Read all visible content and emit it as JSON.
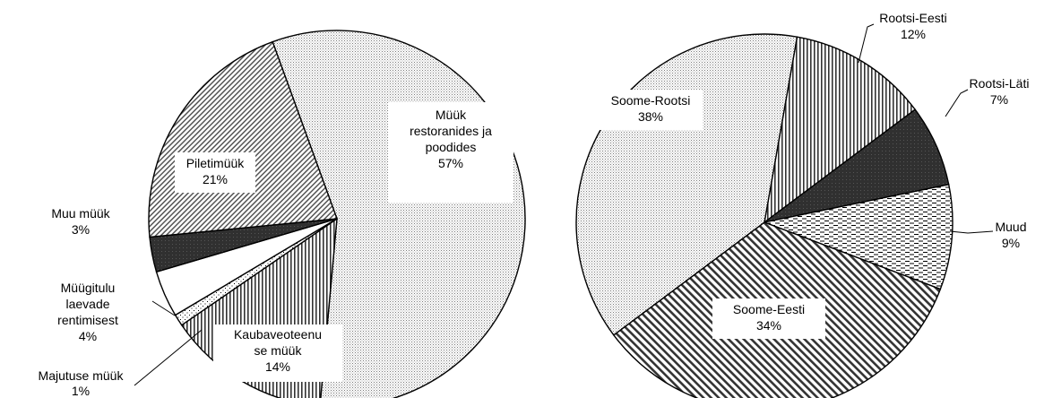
{
  "chart_data": [
    {
      "type": "pie",
      "title": "",
      "slices": [
        {
          "label": "Müük restoranides ja poodides",
          "display": [
            "Müük",
            "restoranides ja",
            "poodides"
          ],
          "value": 57,
          "pct": "57%",
          "pattern": "dots-fine"
        },
        {
          "label": "Kaubaveoteenuse müük",
          "display": [
            "Kaubaveoteenu",
            "se müük"
          ],
          "value": 14,
          "pct": "14%",
          "pattern": "vert-lines"
        },
        {
          "label": "Majutuse müük",
          "display": [
            "Majutuse  müük"
          ],
          "value": 1,
          "pct": "1%",
          "pattern": "dots-sparse"
        },
        {
          "label": "Müügitulu laevade rentimisest",
          "display": [
            "Müügitulu",
            "laevade",
            "rentimisest"
          ],
          "value": 4,
          "pct": "4%",
          "pattern": "white"
        },
        {
          "label": "Muu müük",
          "display": [
            "Muu müük"
          ],
          "value": 3,
          "pct": "3%",
          "pattern": "dark"
        },
        {
          "label": "Piletimüük",
          "display": [
            "Piletimüük"
          ],
          "value": 21,
          "pct": "21%",
          "pattern": "diag-fine"
        }
      ]
    },
    {
      "type": "pie",
      "title": "",
      "slices": [
        {
          "label": "Rootsi-Eesti",
          "display": [
            "Rootsi-Eesti"
          ],
          "value": 12,
          "pct": "12%",
          "pattern": "vert-lines"
        },
        {
          "label": "Rootsi-Läti",
          "display": [
            "Rootsi-Läti"
          ],
          "value": 7,
          "pct": "7%",
          "pattern": "dark"
        },
        {
          "label": "Muud",
          "display": [
            "Muud"
          ],
          "value": 9,
          "pct": "9%",
          "pattern": "dashes"
        },
        {
          "label": "Soome-Eesti",
          "display": [
            "Soome-Eesti"
          ],
          "value": 34,
          "pct": "34%",
          "pattern": "diag-bold"
        },
        {
          "label": "Soome-Rootsi",
          "display": [
            "Soome-Rootsi"
          ],
          "value": 38,
          "pct": "38%",
          "pattern": "dots-fine"
        }
      ]
    }
  ]
}
